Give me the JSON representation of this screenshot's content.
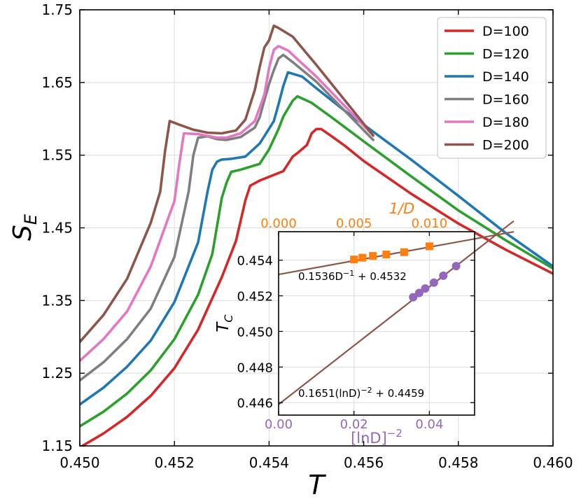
{
  "chart_data": [
    {
      "type": "line",
      "xlabel": "T",
      "ylabel": "S_E",
      "xlim": [
        0.45,
        0.46
      ],
      "ylim": [
        1.15,
        1.75
      ],
      "xticks": [
        "0.450",
        "0.452",
        "0.454",
        "0.456",
        "0.458",
        "0.460"
      ],
      "yticks": [
        "1.15",
        "1.25",
        "1.35",
        "1.45",
        "1.55",
        "1.65",
        "1.75"
      ],
      "grid": true,
      "legend_position": "top-right",
      "series": [
        {
          "name": "D=100",
          "color": "#d62728",
          "x": [
            0.45,
            0.4505,
            0.451,
            0.4515,
            0.452,
            0.4525,
            0.453,
            0.4533,
            0.4535,
            0.4536,
            0.4538,
            0.4543,
            0.4545,
            0.4546,
            0.4548,
            0.4549,
            0.455,
            0.4551,
            0.4553,
            0.4556,
            0.456,
            0.457,
            0.458,
            0.459,
            0.46
          ],
          "y": [
            1.148,
            1.167,
            1.19,
            1.219,
            1.257,
            1.31,
            1.382,
            1.432,
            1.488,
            1.508,
            1.515,
            1.528,
            1.548,
            1.553,
            1.564,
            1.58,
            1.586,
            1.586,
            1.577,
            1.563,
            1.542,
            1.497,
            1.456,
            1.42,
            1.387
          ]
        },
        {
          "name": "D=120",
          "color": "#2ca02c",
          "x": [
            0.45,
            0.4505,
            0.451,
            0.4515,
            0.452,
            0.4525,
            0.4528,
            0.453,
            0.4531,
            0.4532,
            0.4534,
            0.4538,
            0.454,
            0.4542,
            0.4543,
            0.4545,
            0.4546,
            0.4549,
            0.4553,
            0.456,
            0.457,
            0.458,
            0.459,
            0.46
          ],
          "y": [
            1.177,
            1.197,
            1.222,
            1.254,
            1.297,
            1.358,
            1.414,
            1.491,
            1.512,
            1.527,
            1.53,
            1.538,
            1.558,
            1.586,
            1.603,
            1.625,
            1.631,
            1.622,
            1.603,
            1.569,
            1.521,
            1.474,
            1.433,
            1.394
          ]
        },
        {
          "name": "D=140",
          "color": "#1f77b4",
          "x": [
            0.45,
            0.4505,
            0.451,
            0.4515,
            0.452,
            0.4525,
            0.4527,
            0.4528,
            0.4529,
            0.453,
            0.4532,
            0.4535,
            0.4538,
            0.4539,
            0.4541,
            0.4542,
            0.4543,
            0.4544,
            0.4547,
            0.455,
            0.4556,
            0.457,
            0.458,
            0.459,
            0.46
          ],
          "y": [
            1.207,
            1.23,
            1.259,
            1.295,
            1.348,
            1.43,
            1.5,
            1.53,
            1.541,
            1.544,
            1.545,
            1.548,
            1.566,
            1.576,
            1.597,
            1.62,
            1.645,
            1.664,
            1.658,
            1.642,
            1.611,
            1.544,
            1.494,
            1.443,
            1.397
          ]
        },
        {
          "name": "D=160",
          "color": "#7f7f7f",
          "x": [
            0.45,
            0.4505,
            0.451,
            0.4515,
            0.452,
            0.4523,
            0.4524,
            0.4525,
            0.4527,
            0.4529,
            0.4531,
            0.4534,
            0.4537,
            0.4538,
            0.4539,
            0.454,
            0.4541,
            0.4542,
            0.4543,
            0.4545,
            0.455,
            0.4562
          ],
          "y": [
            1.24,
            1.265,
            1.297,
            1.339,
            1.41,
            1.5,
            1.55,
            1.574,
            1.576,
            1.572,
            1.571,
            1.575,
            1.588,
            1.602,
            1.625,
            1.648,
            1.667,
            1.683,
            1.688,
            1.678,
            1.651,
            1.571
          ]
        },
        {
          "name": "D=180",
          "color": "#e377c2",
          "x": [
            0.45,
            0.4505,
            0.451,
            0.4515,
            0.452,
            0.4521,
            0.4522,
            0.4525,
            0.4529,
            0.4531,
            0.4534,
            0.4537,
            0.4539,
            0.454,
            0.4541,
            0.4542,
            0.4544,
            0.455,
            0.4562
          ],
          "y": [
            1.267,
            1.297,
            1.335,
            1.397,
            1.487,
            1.537,
            1.58,
            1.579,
            1.574,
            1.574,
            1.58,
            1.597,
            1.633,
            1.67,
            1.695,
            1.7,
            1.694,
            1.658,
            1.577
          ]
        },
        {
          "name": "D=200",
          "color": "#8c564b",
          "x": [
            0.45,
            0.4505,
            0.451,
            0.4515,
            0.4517,
            0.4518,
            0.4519,
            0.4521,
            0.4524,
            0.4527,
            0.453,
            0.4533,
            0.4535,
            0.4537,
            0.4538,
            0.4539,
            0.454,
            0.4541,
            0.4542,
            0.4545,
            0.455,
            0.4562
          ],
          "y": [
            1.293,
            1.33,
            1.38,
            1.457,
            1.5,
            1.555,
            1.597,
            1.592,
            1.585,
            1.581,
            1.58,
            1.584,
            1.599,
            1.64,
            1.671,
            1.698,
            1.708,
            1.728,
            1.725,
            1.713,
            1.674,
            1.577
          ]
        }
      ]
    },
    {
      "type": "scatter",
      "inset": true,
      "ylabel": "T_C",
      "ylim": [
        0.4453,
        0.4556
      ],
      "yticks": [
        "0.446",
        "0.448",
        "0.450",
        "0.452",
        "0.454"
      ],
      "top_axis": {
        "label": "1/D",
        "color": "#ff7f0e",
        "range": [
          0.0,
          0.013
        ],
        "ticks": [
          "0.000",
          "0.005",
          "0.010"
        ]
      },
      "bottom_axis": {
        "label": "[lnD]^-2",
        "color": "#9467bd",
        "range": [
          0.0,
          0.052
        ],
        "ticks": [
          "0.00",
          "0.02",
          "0.04"
        ]
      },
      "series": [
        {
          "name": "",
          "axis": "top",
          "color": "#ff7f0e",
          "marker": "square",
          "x": [
            0.005,
            0.00556,
            0.00625,
            0.00714,
            0.00833,
            0.01
          ],
          "y": [
            0.45404,
            0.45414,
            0.45424,
            0.45432,
            0.45445,
            0.45478
          ]
        },
        {
          "name": "",
          "axis": "bottom",
          "color": "#9467bd",
          "marker": "circle",
          "x": [
            0.0357,
            0.0373,
            0.0389,
            0.0412,
            0.0437,
            0.0471
          ],
          "y": [
            0.45192,
            0.45216,
            0.45241,
            0.45274,
            0.45313,
            0.45367
          ]
        }
      ],
      "fits": [
        {
          "label": "0.1536D^-1 + 0.4532",
          "axis": "top",
          "slope": 0.1536,
          "intercept": 0.4532,
          "color": "#8c564b"
        },
        {
          "label": "0.1651(lnD)^-2 + 0.4459",
          "axis": "bottom",
          "slope": 0.1651,
          "intercept": 0.4459,
          "color": "#8c564b"
        }
      ]
    }
  ]
}
